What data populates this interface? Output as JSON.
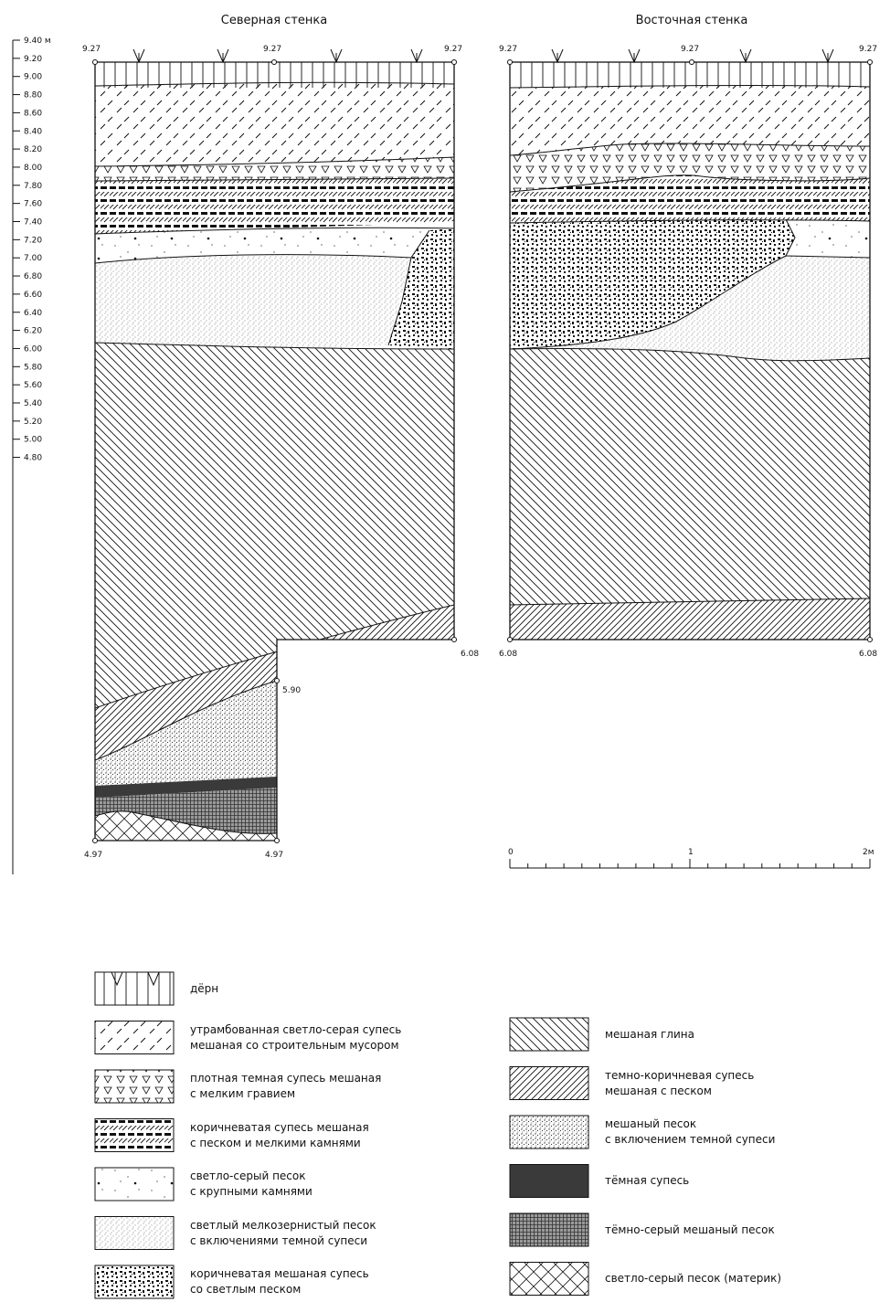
{
  "sections": {
    "north": {
      "title": "Северная стенка",
      "top_marks": [
        "9.27",
        "9.27",
        "9.27"
      ],
      "bottom_left": "4.97",
      "bottom_right": "4.97",
      "right_mark": "6.08",
      "step_mark": "5.90"
    },
    "east": {
      "title": "Восточная стенка",
      "top_marks": [
        "9.27",
        "9.27",
        "9.27"
      ],
      "bottom_left": "6.08",
      "bottom_right": "6.08"
    }
  },
  "elevation_scale": {
    "ticks": [
      "9.40 м",
      "9.20",
      "9.00",
      "8.80",
      "8.60",
      "8.40",
      "8.20",
      "8.00",
      "7.80",
      "7.60",
      "7.40",
      "7.20",
      "7.00",
      "6.80",
      "6.60",
      "6.40",
      "6.20",
      "6.00",
      "5.80",
      "5.60",
      "5.40",
      "5.20",
      "5.00",
      "4.80"
    ]
  },
  "scale_bar": {
    "labels": [
      "0",
      "1",
      "2м"
    ]
  },
  "legend": [
    {
      "pattern": "turf",
      "lines": [
        "дёрн"
      ]
    },
    {
      "pattern": "fwd-dash",
      "lines": [
        "утрамбованная светло-серая супесь",
        "мешаная со строительным мусором"
      ]
    },
    {
      "pattern": "triangles",
      "lines": [
        "плотная темная супесь мешаная",
        "с мелким гравием"
      ]
    },
    {
      "pattern": "brown-stripes",
      "lines": [
        "коричневатая супесь мешаная",
        "с песком и мелкими камнями"
      ]
    },
    {
      "pattern": "stones",
      "lines": [
        "светло-серый песок",
        "с крупными камнями"
      ]
    },
    {
      "pattern": "fine-sand",
      "lines": [
        "светлый мелкозернистый песок",
        "с включениями темной супеси"
      ]
    },
    {
      "pattern": "mottled",
      "lines": [
        "коричневатая мешаная супесь",
        "со светлым песком"
      ]
    },
    {
      "pattern": "back-hatch",
      "lines": [
        "мешаная глина"
      ]
    },
    {
      "pattern": "fwd-dense",
      "lines": [
        "темно-коричневая супесь",
        "мешаная с песком"
      ]
    },
    {
      "pattern": "speckle",
      "lines": [
        "мешаный песок",
        "с включением темной супеси"
      ]
    },
    {
      "pattern": "solid-dark",
      "lines": [
        "тёмная супесь"
      ]
    },
    {
      "pattern": "grid",
      "lines": [
        "тёмно-серый мешаный песок"
      ]
    },
    {
      "pattern": "chevron",
      "lines": [
        "светло-серый песок (материк)"
      ]
    }
  ],
  "colors": {
    "ink": "#111111",
    "dark_soil": "#3a3a3a",
    "grid_sand": "#8a8a8a"
  }
}
